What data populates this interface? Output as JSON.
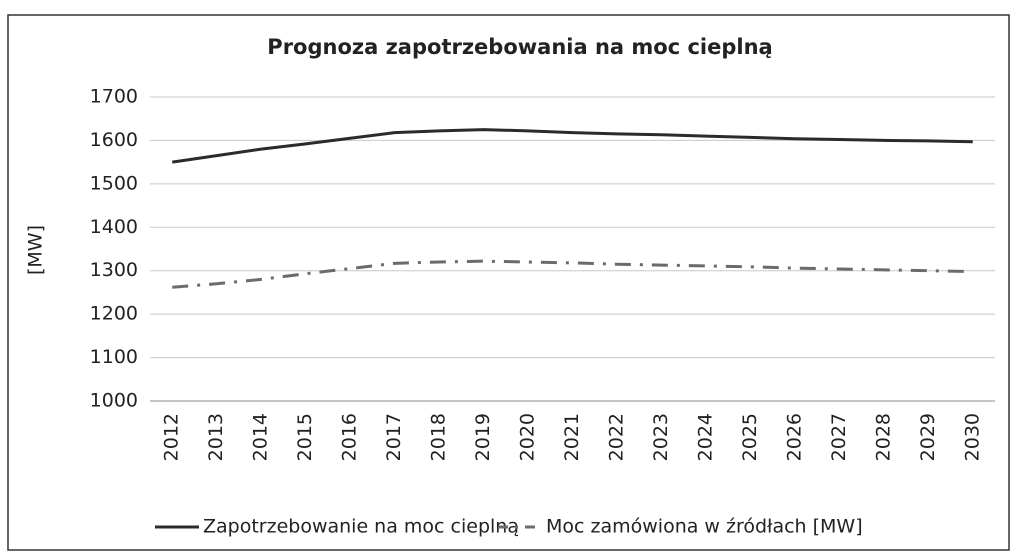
{
  "chart_data": {
    "type": "line",
    "title": "Prognoza zapotrzebowania na moc cieplną",
    "y_label": "[MW]",
    "categories": [
      "2012",
      "2013",
      "2014",
      "2015",
      "2016",
      "2017",
      "2018",
      "2019",
      "2020",
      "2021",
      "2022",
      "2023",
      "2024",
      "2025",
      "2026",
      "2027",
      "2028",
      "2029",
      "2030"
    ],
    "series": [
      {
        "name": "Zapotrzebowanie na moc cieplną",
        "color": "#2b2b2b",
        "dash": "solid",
        "values": [
          1550,
          1565,
          1580,
          1592,
          1605,
          1618,
          1622,
          1625,
          1622,
          1618,
          1615,
          1613,
          1610,
          1607,
          1604,
          1602,
          1600,
          1599,
          1597
        ]
      },
      {
        "name": "Moc zamówiona w źródłach [MW]",
        "color": "#6b6b6b",
        "dash": "dashdot",
        "values": [
          1262,
          1270,
          1280,
          1293,
          1305,
          1317,
          1320,
          1322,
          1320,
          1318,
          1315,
          1313,
          1311,
          1309,
          1306,
          1304,
          1302,
          1300,
          1298
        ]
      }
    ],
    "ylim": [
      1000,
      1700
    ],
    "yticks": [
      1000,
      1100,
      1200,
      1300,
      1400,
      1500,
      1600,
      1700
    ],
    "grid": true,
    "legend": "bottom"
  }
}
